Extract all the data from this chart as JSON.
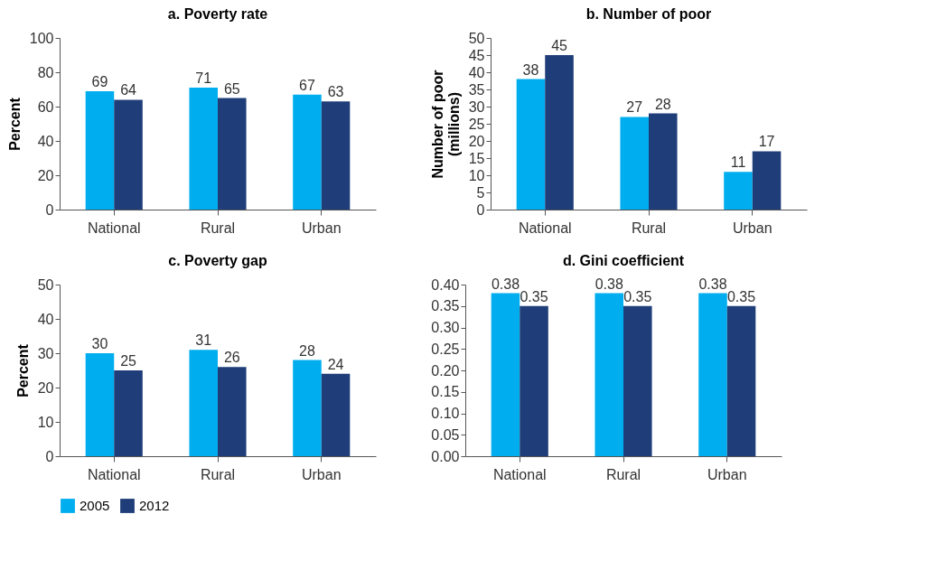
{
  "chart_data": [
    {
      "type": "bar",
      "title": "a. Poverty rate",
      "ylabel": "Percent",
      "categories": [
        "National",
        "Rural",
        "Urban"
      ],
      "series": [
        {
          "name": "2005",
          "color": "#00aeef",
          "values": [
            69,
            71,
            67
          ]
        },
        {
          "name": "2012",
          "color": "#1f3e79",
          "values": [
            64,
            65,
            63
          ]
        }
      ],
      "ylim": [
        0,
        100
      ],
      "yticks": [
        0,
        20,
        40,
        60,
        80,
        100
      ],
      "data_labels": true,
      "legend": "bottom"
    },
    {
      "type": "bar",
      "title": "b. Number of poor",
      "ylabel": "Number of poor (millions)",
      "categories": [
        "National",
        "Rural",
        "Urban"
      ],
      "series": [
        {
          "name": "2005",
          "color": "#00aeef",
          "values": [
            38,
            27,
            11
          ]
        },
        {
          "name": "2012",
          "color": "#1f3e79",
          "values": [
            45,
            28,
            17
          ]
        }
      ],
      "ylim": [
        0,
        50
      ],
      "yticks": [
        0,
        5,
        10,
        15,
        20,
        25,
        30,
        35,
        40,
        45,
        50
      ],
      "data_labels": true,
      "legend": "bottom"
    },
    {
      "type": "bar",
      "title": "c. Poverty gap",
      "ylabel": "Percent",
      "categories": [
        "National",
        "Rural",
        "Urban"
      ],
      "series": [
        {
          "name": "2005",
          "color": "#00aeef",
          "values": [
            30,
            31,
            28
          ]
        },
        {
          "name": "2012",
          "color": "#1f3e79",
          "values": [
            25,
            26,
            24
          ]
        }
      ],
      "ylim": [
        0,
        50
      ],
      "yticks": [
        0,
        10,
        20,
        30,
        40,
        50
      ],
      "data_labels": true,
      "legend": "bottom"
    },
    {
      "type": "bar",
      "title": "d. Gini coefficient",
      "categories": [
        "National",
        "Rural",
        "Urban"
      ],
      "series": [
        {
          "name": "2005",
          "color": "#00aeef",
          "values": [
            0.38,
            0.38,
            0.38
          ]
        },
        {
          "name": "2012",
          "color": "#1f3e79",
          "values": [
            0.35,
            0.35,
            0.35
          ]
        }
      ],
      "ylim": [
        0,
        0.4
      ],
      "yticks": [
        {
          "value": 0,
          "label": "0.00"
        },
        {
          "value": 0.05,
          "label": "0.05"
        },
        {
          "value": 0.1,
          "label": "0.10"
        },
        {
          "value": 0.15,
          "label": "0.15"
        },
        {
          "value": 0.2,
          "label": "0.20"
        },
        {
          "value": 0.25,
          "label": "0.25"
        },
        {
          "value": 0.3,
          "label": "0.30"
        },
        {
          "value": 0.35,
          "label": "0.35"
        },
        {
          "value": 0.4,
          "label": "0.40"
        }
      ],
      "data_labels": true,
      "legend": "bottom"
    }
  ]
}
